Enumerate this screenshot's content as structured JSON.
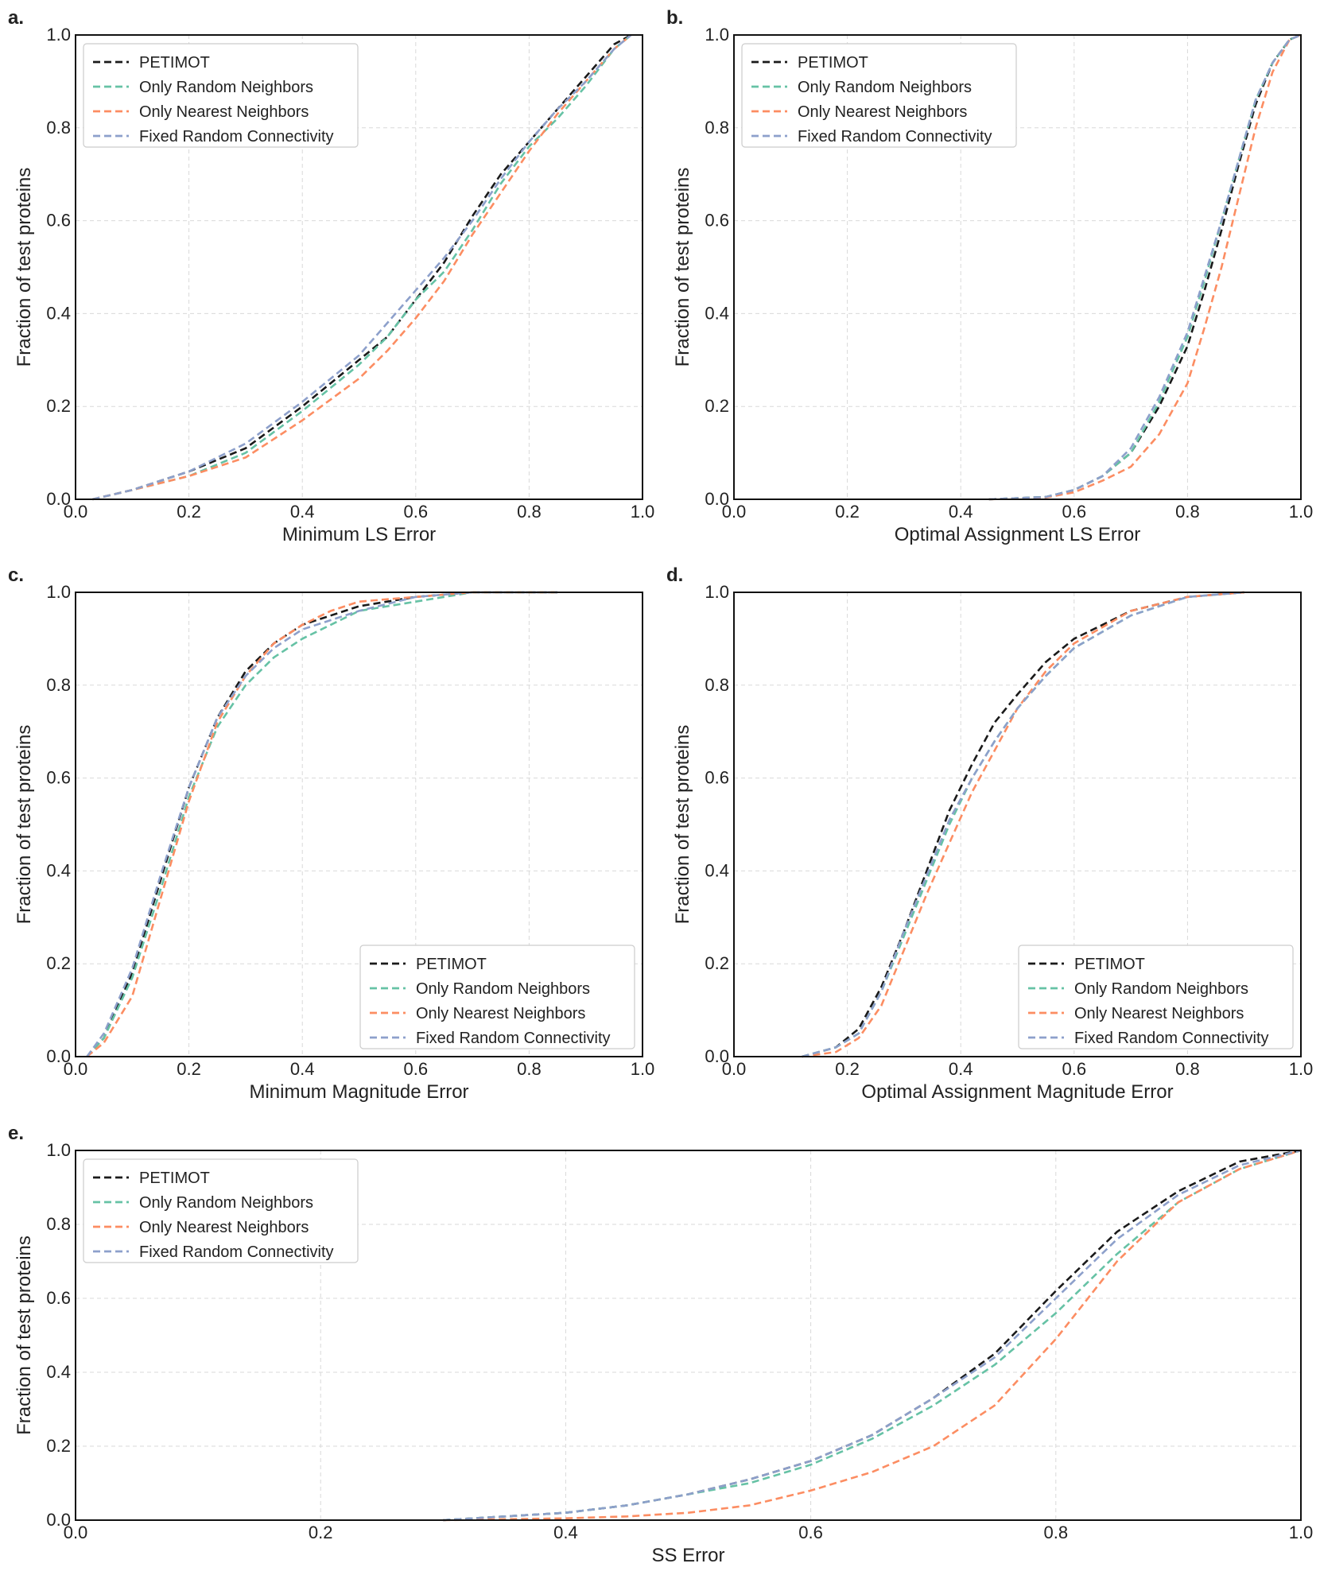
{
  "chart_data": [
    {
      "id": "a",
      "panel_label": "a.",
      "type": "line",
      "title": "",
      "xlabel": "Minimum LS Error",
      "ylabel": "Fraction of test proteins",
      "xlim": [
        0.0,
        1.0
      ],
      "ylim": [
        0.0,
        1.0
      ],
      "xticks": [
        "0.0",
        "0.2",
        "0.4",
        "0.6",
        "0.8",
        "1.0"
      ],
      "yticks": [
        "0.0",
        "0.2",
        "0.4",
        "0.6",
        "0.8",
        "1.0"
      ],
      "grid": true,
      "legend_position": "top-left",
      "series": [
        {
          "name": "PETIMOT",
          "color": "#1a1a1a",
          "x": [
            0.03,
            0.1,
            0.2,
            0.3,
            0.4,
            0.5,
            0.55,
            0.6,
            0.65,
            0.7,
            0.75,
            0.8,
            0.85,
            0.9,
            0.95,
            0.98
          ],
          "y": [
            0.0,
            0.02,
            0.06,
            0.11,
            0.2,
            0.3,
            0.35,
            0.43,
            0.51,
            0.61,
            0.7,
            0.77,
            0.84,
            0.91,
            0.98,
            1.0
          ]
        },
        {
          "name": "Only Random Neighbors",
          "color": "#66c2a5",
          "x": [
            0.03,
            0.1,
            0.2,
            0.3,
            0.4,
            0.5,
            0.55,
            0.6,
            0.65,
            0.7,
            0.75,
            0.8,
            0.85,
            0.9,
            0.95,
            0.98
          ],
          "y": [
            0.0,
            0.02,
            0.05,
            0.1,
            0.19,
            0.29,
            0.35,
            0.43,
            0.49,
            0.58,
            0.68,
            0.76,
            0.82,
            0.89,
            0.97,
            1.0
          ]
        },
        {
          "name": "Only Nearest Neighbors",
          "color": "#fc8d62",
          "x": [
            0.03,
            0.1,
            0.2,
            0.3,
            0.4,
            0.5,
            0.55,
            0.6,
            0.65,
            0.7,
            0.75,
            0.8,
            0.85,
            0.9,
            0.95,
            0.98
          ],
          "y": [
            0.0,
            0.02,
            0.05,
            0.09,
            0.17,
            0.26,
            0.32,
            0.39,
            0.47,
            0.57,
            0.66,
            0.75,
            0.83,
            0.9,
            0.97,
            1.0
          ]
        },
        {
          "name": "Fixed Random Connectivity",
          "color": "#8da0cb",
          "x": [
            0.03,
            0.1,
            0.2,
            0.3,
            0.4,
            0.5,
            0.55,
            0.6,
            0.65,
            0.7,
            0.75,
            0.8,
            0.85,
            0.9,
            0.95,
            0.98
          ],
          "y": [
            0.0,
            0.02,
            0.06,
            0.12,
            0.21,
            0.31,
            0.38,
            0.45,
            0.52,
            0.6,
            0.69,
            0.77,
            0.84,
            0.9,
            0.97,
            1.0
          ]
        }
      ]
    },
    {
      "id": "b",
      "panel_label": "b.",
      "type": "line",
      "title": "",
      "xlabel": "Optimal Assignment LS Error",
      "ylabel": "Fraction of test proteins",
      "xlim": [
        0.0,
        1.0
      ],
      "ylim": [
        0.0,
        1.0
      ],
      "xticks": [
        "0.0",
        "0.2",
        "0.4",
        "0.6",
        "0.8",
        "1.0"
      ],
      "yticks": [
        "0.0",
        "0.2",
        "0.4",
        "0.6",
        "0.8",
        "1.0"
      ],
      "grid": true,
      "legend_position": "top-left",
      "series": [
        {
          "name": "PETIMOT",
          "color": "#1a1a1a",
          "x": [
            0.45,
            0.55,
            0.6,
            0.65,
            0.7,
            0.75,
            0.8,
            0.83,
            0.86,
            0.89,
            0.92,
            0.95,
            0.98,
            1.0
          ],
          "y": [
            0.0,
            0.005,
            0.02,
            0.05,
            0.1,
            0.2,
            0.33,
            0.45,
            0.58,
            0.72,
            0.85,
            0.94,
            0.99,
            1.0
          ]
        },
        {
          "name": "Only Random Neighbors",
          "color": "#66c2a5",
          "x": [
            0.45,
            0.55,
            0.6,
            0.65,
            0.7,
            0.75,
            0.8,
            0.83,
            0.86,
            0.89,
            0.92,
            0.95,
            0.98,
            1.0
          ],
          "y": [
            0.0,
            0.005,
            0.02,
            0.05,
            0.1,
            0.21,
            0.35,
            0.47,
            0.6,
            0.73,
            0.86,
            0.94,
            0.99,
            1.0
          ]
        },
        {
          "name": "Only Nearest Neighbors",
          "color": "#fc8d62",
          "x": [
            0.45,
            0.55,
            0.6,
            0.65,
            0.7,
            0.75,
            0.8,
            0.83,
            0.86,
            0.89,
            0.92,
            0.95,
            0.98,
            1.0
          ],
          "y": [
            0.0,
            0.004,
            0.015,
            0.04,
            0.07,
            0.14,
            0.25,
            0.37,
            0.5,
            0.65,
            0.8,
            0.92,
            0.99,
            1.0
          ]
        },
        {
          "name": "Fixed Random Connectivity",
          "color": "#8da0cb",
          "x": [
            0.45,
            0.55,
            0.6,
            0.65,
            0.7,
            0.75,
            0.8,
            0.83,
            0.86,
            0.89,
            0.92,
            0.95,
            0.98,
            1.0
          ],
          "y": [
            0.0,
            0.005,
            0.02,
            0.05,
            0.11,
            0.22,
            0.36,
            0.48,
            0.6,
            0.73,
            0.86,
            0.94,
            0.99,
            1.0
          ]
        }
      ]
    },
    {
      "id": "c",
      "panel_label": "c.",
      "type": "line",
      "title": "",
      "xlabel": "Minimum Magnitude Error",
      "ylabel": "Fraction of test proteins",
      "xlim": [
        0.0,
        1.0
      ],
      "ylim": [
        0.0,
        1.0
      ],
      "xticks": [
        "0.0",
        "0.2",
        "0.4",
        "0.6",
        "0.8",
        "1.0"
      ],
      "yticks": [
        "0.0",
        "0.2",
        "0.4",
        "0.6",
        "0.8",
        "1.0"
      ],
      "grid": true,
      "legend_position": "lower-right",
      "series": [
        {
          "name": "PETIMOT",
          "color": "#1a1a1a",
          "x": [
            0.02,
            0.05,
            0.1,
            0.15,
            0.2,
            0.25,
            0.3,
            0.35,
            0.4,
            0.45,
            0.5,
            0.6,
            0.7,
            0.85
          ],
          "y": [
            0.0,
            0.04,
            0.18,
            0.38,
            0.58,
            0.73,
            0.83,
            0.89,
            0.93,
            0.95,
            0.97,
            0.99,
            1.0,
            1.0
          ]
        },
        {
          "name": "Only Random Neighbors",
          "color": "#66c2a5",
          "x": [
            0.02,
            0.05,
            0.1,
            0.15,
            0.2,
            0.25,
            0.3,
            0.35,
            0.4,
            0.45,
            0.5,
            0.6,
            0.7,
            0.85
          ],
          "y": [
            0.0,
            0.04,
            0.17,
            0.36,
            0.56,
            0.71,
            0.8,
            0.86,
            0.9,
            0.93,
            0.96,
            0.98,
            1.0,
            1.0
          ]
        },
        {
          "name": "Only Nearest Neighbors",
          "color": "#fc8d62",
          "x": [
            0.02,
            0.05,
            0.1,
            0.15,
            0.2,
            0.25,
            0.3,
            0.35,
            0.4,
            0.45,
            0.5,
            0.6,
            0.7,
            0.85
          ],
          "y": [
            0.0,
            0.03,
            0.13,
            0.34,
            0.55,
            0.72,
            0.82,
            0.89,
            0.93,
            0.96,
            0.98,
            0.99,
            1.0,
            1.0
          ]
        },
        {
          "name": "Fixed Random Connectivity",
          "color": "#8da0cb",
          "x": [
            0.02,
            0.05,
            0.1,
            0.15,
            0.2,
            0.25,
            0.3,
            0.35,
            0.4,
            0.45,
            0.5,
            0.6,
            0.7,
            0.85
          ],
          "y": [
            0.0,
            0.05,
            0.19,
            0.39,
            0.58,
            0.73,
            0.82,
            0.88,
            0.92,
            0.94,
            0.96,
            0.99,
            1.0,
            1.0
          ]
        }
      ]
    },
    {
      "id": "d",
      "panel_label": "d.",
      "type": "line",
      "title": "",
      "xlabel": "Optimal Assignment Magnitude Error",
      "ylabel": "Fraction of test proteins",
      "xlim": [
        0.0,
        1.0
      ],
      "ylim": [
        0.0,
        1.0
      ],
      "xticks": [
        "0.0",
        "0.2",
        "0.4",
        "0.6",
        "0.8",
        "1.0"
      ],
      "yticks": [
        "0.0",
        "0.2",
        "0.4",
        "0.6",
        "0.8",
        "1.0"
      ],
      "grid": true,
      "legend_position": "lower-right",
      "series": [
        {
          "name": "PETIMOT",
          "color": "#1a1a1a",
          "x": [
            0.12,
            0.18,
            0.22,
            0.26,
            0.3,
            0.34,
            0.38,
            0.42,
            0.46,
            0.5,
            0.55,
            0.6,
            0.7,
            0.8,
            0.9
          ],
          "y": [
            0.0,
            0.02,
            0.06,
            0.15,
            0.27,
            0.4,
            0.53,
            0.63,
            0.72,
            0.78,
            0.85,
            0.9,
            0.96,
            0.99,
            1.0
          ]
        },
        {
          "name": "Only Random Neighbors",
          "color": "#66c2a5",
          "x": [
            0.12,
            0.18,
            0.22,
            0.26,
            0.3,
            0.34,
            0.38,
            0.42,
            0.46,
            0.5,
            0.55,
            0.6,
            0.7,
            0.8,
            0.9
          ],
          "y": [
            0.0,
            0.02,
            0.05,
            0.14,
            0.26,
            0.38,
            0.5,
            0.6,
            0.68,
            0.75,
            0.82,
            0.88,
            0.95,
            0.99,
            1.0
          ]
        },
        {
          "name": "Only Nearest Neighbors",
          "color": "#fc8d62",
          "x": [
            0.12,
            0.18,
            0.22,
            0.26,
            0.3,
            0.34,
            0.38,
            0.42,
            0.46,
            0.5,
            0.55,
            0.6,
            0.7,
            0.8,
            0.9
          ],
          "y": [
            0.0,
            0.01,
            0.04,
            0.11,
            0.23,
            0.35,
            0.46,
            0.57,
            0.66,
            0.75,
            0.83,
            0.89,
            0.96,
            0.99,
            1.0
          ]
        },
        {
          "name": "Fixed Random Connectivity",
          "color": "#8da0cb",
          "x": [
            0.12,
            0.18,
            0.22,
            0.26,
            0.3,
            0.34,
            0.38,
            0.42,
            0.46,
            0.5,
            0.55,
            0.6,
            0.7,
            0.8,
            0.9
          ],
          "y": [
            0.0,
            0.02,
            0.05,
            0.14,
            0.27,
            0.39,
            0.51,
            0.6,
            0.68,
            0.75,
            0.82,
            0.88,
            0.95,
            0.99,
            1.0
          ]
        }
      ]
    },
    {
      "id": "e",
      "panel_label": "e.",
      "type": "line",
      "title": "",
      "xlabel": "SS Error",
      "ylabel": "Fraction of test proteins",
      "xlim": [
        0.0,
        1.0
      ],
      "ylim": [
        0.0,
        1.0
      ],
      "xticks": [
        "0.0",
        "0.2",
        "0.4",
        "0.6",
        "0.8",
        "1.0"
      ],
      "yticks": [
        "0.0",
        "0.2",
        "0.4",
        "0.6",
        "0.8",
        "1.0"
      ],
      "grid": true,
      "legend_position": "top-left",
      "series": [
        {
          "name": "PETIMOT",
          "color": "#1a1a1a",
          "x": [
            0.3,
            0.4,
            0.45,
            0.5,
            0.55,
            0.6,
            0.65,
            0.7,
            0.75,
            0.8,
            0.85,
            0.9,
            0.95,
            1.0
          ],
          "y": [
            0.0,
            0.02,
            0.04,
            0.07,
            0.11,
            0.16,
            0.23,
            0.33,
            0.45,
            0.62,
            0.78,
            0.89,
            0.97,
            1.0
          ]
        },
        {
          "name": "Only Random Neighbors",
          "color": "#66c2a5",
          "x": [
            0.3,
            0.4,
            0.45,
            0.5,
            0.55,
            0.6,
            0.65,
            0.7,
            0.75,
            0.8,
            0.85,
            0.9,
            0.95,
            1.0
          ],
          "y": [
            0.0,
            0.02,
            0.04,
            0.07,
            0.1,
            0.15,
            0.22,
            0.31,
            0.42,
            0.56,
            0.72,
            0.86,
            0.95,
            1.0
          ]
        },
        {
          "name": "Only Nearest Neighbors",
          "color": "#fc8d62",
          "x": [
            0.3,
            0.4,
            0.45,
            0.5,
            0.55,
            0.6,
            0.65,
            0.7,
            0.75,
            0.8,
            0.85,
            0.9,
            0.95,
            1.0
          ],
          "y": [
            0.0,
            0.005,
            0.01,
            0.02,
            0.04,
            0.08,
            0.13,
            0.2,
            0.31,
            0.49,
            0.7,
            0.86,
            0.95,
            1.0
          ]
        },
        {
          "name": "Fixed Random Connectivity",
          "color": "#8da0cb",
          "x": [
            0.3,
            0.4,
            0.45,
            0.5,
            0.55,
            0.6,
            0.65,
            0.7,
            0.75,
            0.8,
            0.85,
            0.9,
            0.95,
            1.0
          ],
          "y": [
            0.0,
            0.02,
            0.04,
            0.07,
            0.11,
            0.16,
            0.23,
            0.33,
            0.44,
            0.6,
            0.76,
            0.88,
            0.96,
            1.0
          ]
        }
      ]
    }
  ]
}
